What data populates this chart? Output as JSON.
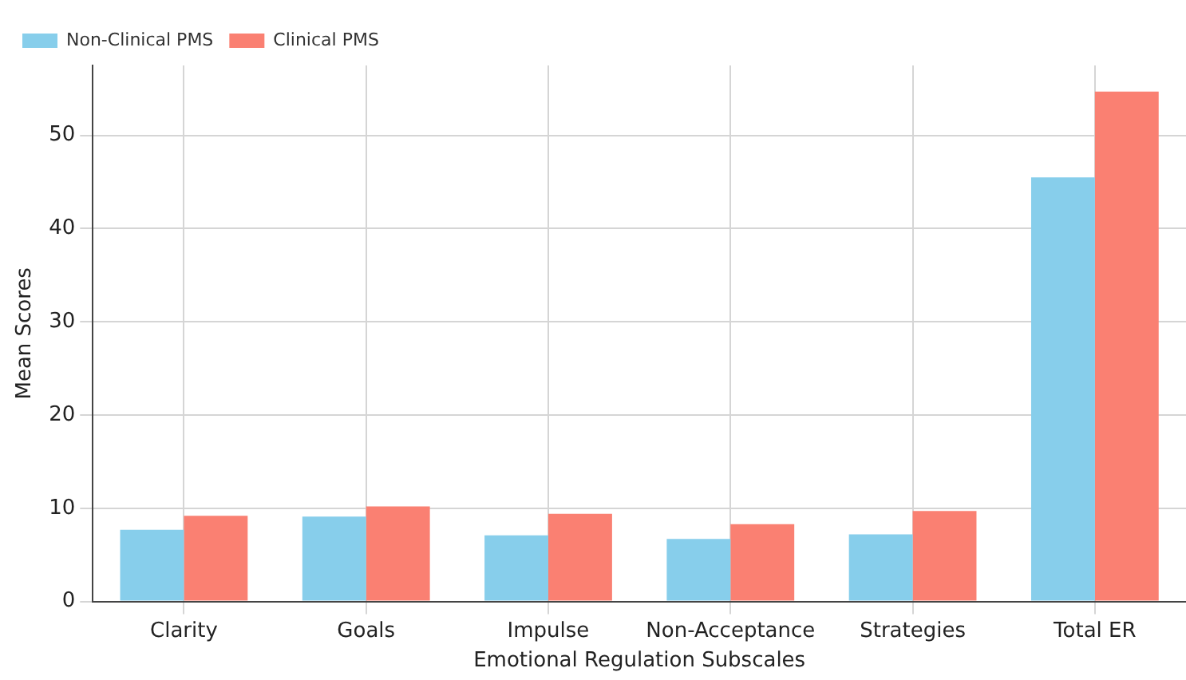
{
  "chart_data": {
    "type": "bar",
    "xlabel": "Emotional Regulation Subscales",
    "ylabel": "Mean Scores",
    "categories": [
      "Clarity",
      "Goals",
      "Impulse",
      "Non-Acceptance",
      "Strategies",
      "Total ER"
    ],
    "series": [
      {
        "name": "Non-Clinical PMS",
        "color": "#87ceeb",
        "values": [
          7.7,
          9.1,
          7.1,
          6.7,
          7.2,
          45.5
        ]
      },
      {
        "name": "Clinical PMS",
        "color": "#fa8072",
        "values": [
          9.2,
          10.2,
          9.4,
          8.3,
          9.7,
          54.7
        ]
      }
    ],
    "ylim": [
      0,
      57.5
    ],
    "yticks": [
      0,
      10,
      20,
      30,
      40,
      50
    ],
    "grid": true,
    "legend": "top left"
  }
}
